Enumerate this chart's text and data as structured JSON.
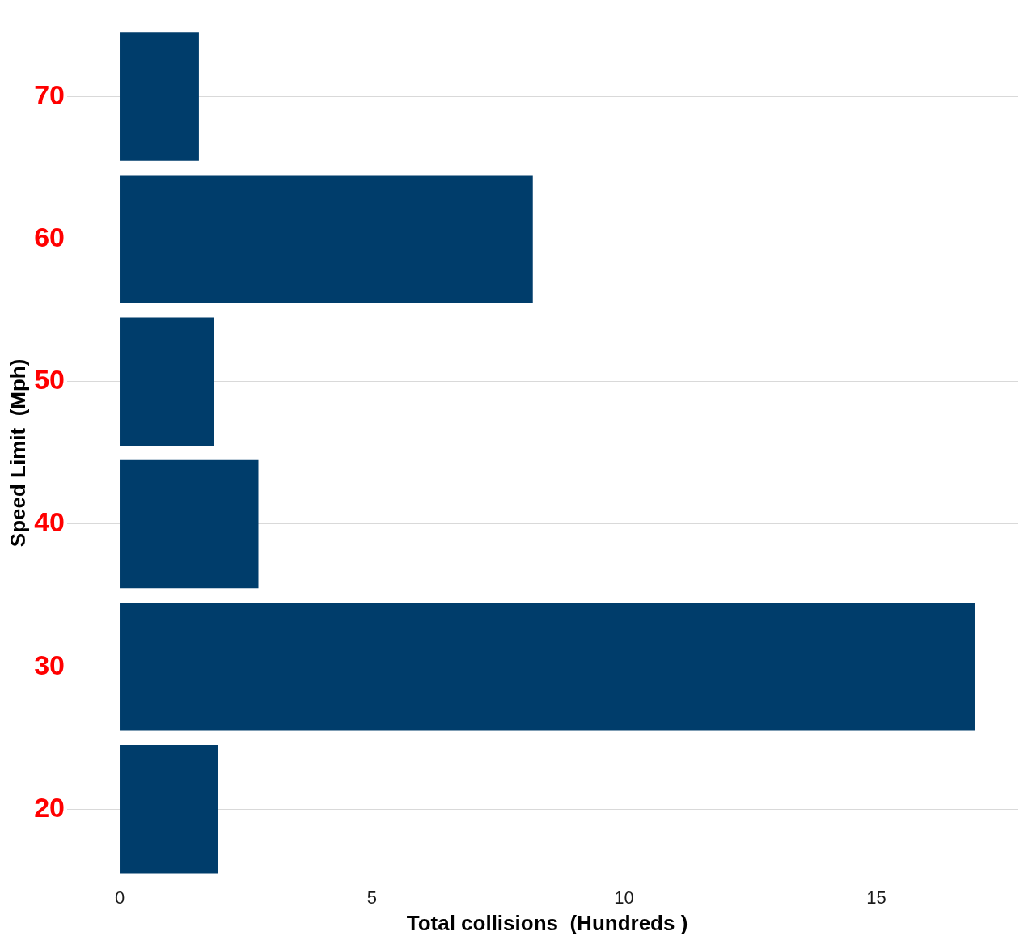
{
  "chart_data": {
    "type": "bar",
    "orientation": "horizontal",
    "xlabel": "Total collisions  (Hundreds )",
    "ylabel": "Speed Limit  (Mph)",
    "categories": [
      "70",
      "60",
      "50",
      "40",
      "30",
      "20"
    ],
    "values": [
      1.57,
      8.19,
      1.86,
      2.75,
      16.95,
      1.94
    ],
    "color": "#003d6b",
    "xlim": [
      -0.85,
      17.8
    ],
    "xticks": [
      0,
      5,
      10,
      15
    ],
    "grid": "y",
    "legend": false
  }
}
